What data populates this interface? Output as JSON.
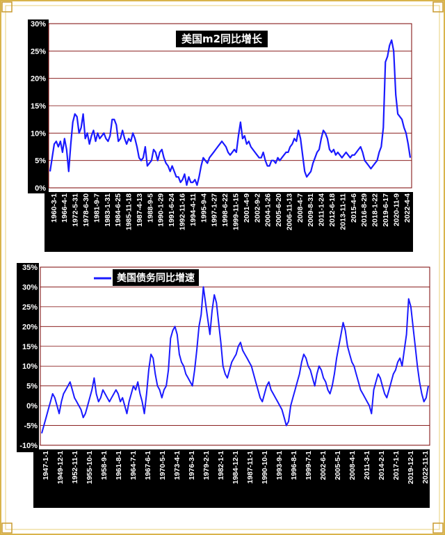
{
  "chart_data": [
    {
      "type": "line",
      "title": "美国m2同比增长",
      "xlabel": "",
      "ylabel": "",
      "ylim": [
        0,
        30
      ],
      "y_ticks": [
        "0%",
        "5%",
        "10%",
        "15%",
        "20%",
        "25%",
        "30%"
      ],
      "grid": "horizontal, dark red",
      "legend": "top-center",
      "x_tick_labels": [
        "1960-3-1",
        "1966-4-1",
        "1972-5-31",
        "1978-6-30",
        "1981-9-7",
        "1983-1-31",
        "1984-6-25",
        "1985-11-18",
        "1987-4-13",
        "1988-9-5",
        "1990-1-29",
        "1991-6-24",
        "1992-11-16",
        "1994-4-11",
        "1995-9-4",
        "1997-1-27",
        "1998-6-22",
        "1999-11-15",
        "2001-4-9",
        "2002-9-2",
        "2004-1-26",
        "2005-6-20",
        "2006-11-13",
        "2008-4-7",
        "2009-8-31",
        "2011-1-24",
        "2012-6-18",
        "2013-11-11",
        "2015-4-6",
        "2016-8-29",
        "2018-1-22",
        "2019-6-17",
        "2020-11-9",
        "2022-4-4"
      ],
      "series": [
        {
          "name": "美国m2同比增长",
          "color": "#1a1aff",
          "values": [
            3,
            5.5,
            8,
            8.5,
            7.5,
            8.5,
            6.5,
            9,
            7,
            3,
            8,
            12,
            13.5,
            13,
            10,
            11,
            13.5,
            9,
            10,
            8,
            9.5,
            10.5,
            8.5,
            10,
            9,
            9.5,
            10,
            9,
            8.5,
            9.5,
            12.5,
            12.5,
            11.5,
            8.5,
            9,
            10.5,
            9,
            8,
            9,
            8.5,
            10,
            9,
            7.5,
            5.5,
            5,
            5.5,
            7.5,
            4,
            4.5,
            5,
            7,
            6.5,
            5,
            6.5,
            7,
            5.5,
            4.5,
            4,
            3,
            4,
            3,
            2,
            2,
            1,
            1.5,
            2.5,
            0.5,
            2,
            1,
            1,
            1.5,
            0.5,
            2,
            4,
            5.5,
            5,
            4.5,
            5.5,
            6,
            6.5,
            7,
            7.5,
            8,
            8.5,
            8,
            7.5,
            6.5,
            6,
            6.5,
            7,
            6.5,
            9.5,
            12,
            9,
            9.5,
            8,
            8.5,
            7.5,
            7,
            6.5,
            6,
            5.5,
            5.5,
            6.5,
            5,
            4,
            4,
            5,
            5,
            4.5,
            5.5,
            5,
            5.5,
            6,
            6.5,
            6.5,
            7.5,
            8,
            9,
            8.5,
            10.5,
            9,
            6,
            3,
            2,
            2.5,
            3,
            4.5,
            5.5,
            6.5,
            7,
            9,
            10.5,
            10,
            9,
            7,
            6.5,
            7,
            6,
            6.5,
            6,
            5.5,
            6,
            6.5,
            6,
            5.5,
            6,
            6,
            6.5,
            7,
            7.5,
            6.5,
            5,
            4.5,
            4,
            3.5,
            4,
            4.5,
            5,
            6.5,
            7.5,
            11,
            23,
            24,
            26,
            27,
            25,
            17,
            13.5,
            13,
            12.5,
            11,
            10,
            8,
            5.5
          ]
        }
      ]
    },
    {
      "type": "line",
      "title": "",
      "xlabel": "",
      "ylabel": "",
      "ylim": [
        -10,
        35
      ],
      "y_ticks": [
        "-10%",
        "-5%",
        "0%",
        "5%",
        "10%",
        "15%",
        "20%",
        "25%",
        "30%",
        "35%"
      ],
      "grid": "horizontal, dark red",
      "legend": "top-left",
      "x_tick_labels": [
        "1947-1-1",
        "1949-12-1",
        "1952-11-1",
        "1955-10-1",
        "1958-9-1",
        "1961-8-1",
        "1964-7-1",
        "1967-6-1",
        "1970-5-1",
        "1973-4-1",
        "1976-3-1",
        "1979-2-1",
        "1982-1-1",
        "1984-12-1",
        "1987-11-1",
        "1990-10-1",
        "1993-9-1",
        "1996-8-1",
        "1999-7-1",
        "2002-6-1",
        "2005-5-1",
        "2008-4-1",
        "2011-3-1",
        "2014-2-1",
        "2017-1-1",
        "2019-12-1",
        "2022-11-1"
      ],
      "series": [
        {
          "name": "美国债务同比增速",
          "color": "#1a1aff",
          "values": [
            -7,
            -5,
            -3,
            -1,
            1,
            3,
            2,
            0,
            -2,
            1,
            3,
            4,
            5,
            6,
            4,
            2,
            1,
            0,
            -1,
            -3,
            -2,
            0,
            2,
            4,
            7,
            3,
            1,
            2,
            4,
            3,
            2,
            1,
            2,
            3,
            4,
            3,
            1,
            2,
            0,
            -2,
            1,
            3,
            5,
            4,
            6,
            3,
            1,
            -2,
            3,
            9,
            13,
            12,
            8,
            5,
            4,
            2,
            4,
            5,
            9,
            17,
            19,
            20,
            18,
            13,
            11,
            10,
            8,
            7,
            6,
            5,
            9,
            14,
            20,
            23,
            30,
            26,
            22,
            18,
            24,
            28,
            26,
            21,
            16,
            10,
            8,
            7,
            9,
            11,
            12,
            13,
            15,
            16,
            14,
            13,
            12,
            11,
            10,
            8,
            6,
            4,
            2,
            1,
            3,
            5,
            6,
            4,
            3,
            2,
            1,
            0,
            -1,
            -3,
            -5,
            -4,
            0,
            2,
            4,
            6,
            8,
            11,
            13,
            12,
            10,
            9,
            7,
            5,
            8,
            10,
            9,
            7,
            6,
            4,
            3,
            5,
            8,
            12,
            15,
            18,
            21,
            19,
            15,
            13,
            11,
            10,
            8,
            6,
            4,
            3,
            2,
            1,
            0,
            -2,
            4,
            6,
            8,
            7,
            5,
            3,
            2,
            4,
            6,
            8,
            9,
            11,
            12,
            10,
            14,
            18,
            27,
            25,
            20,
            15,
            10,
            6,
            3,
            1,
            2,
            5
          ]
        }
      ]
    }
  ]
}
